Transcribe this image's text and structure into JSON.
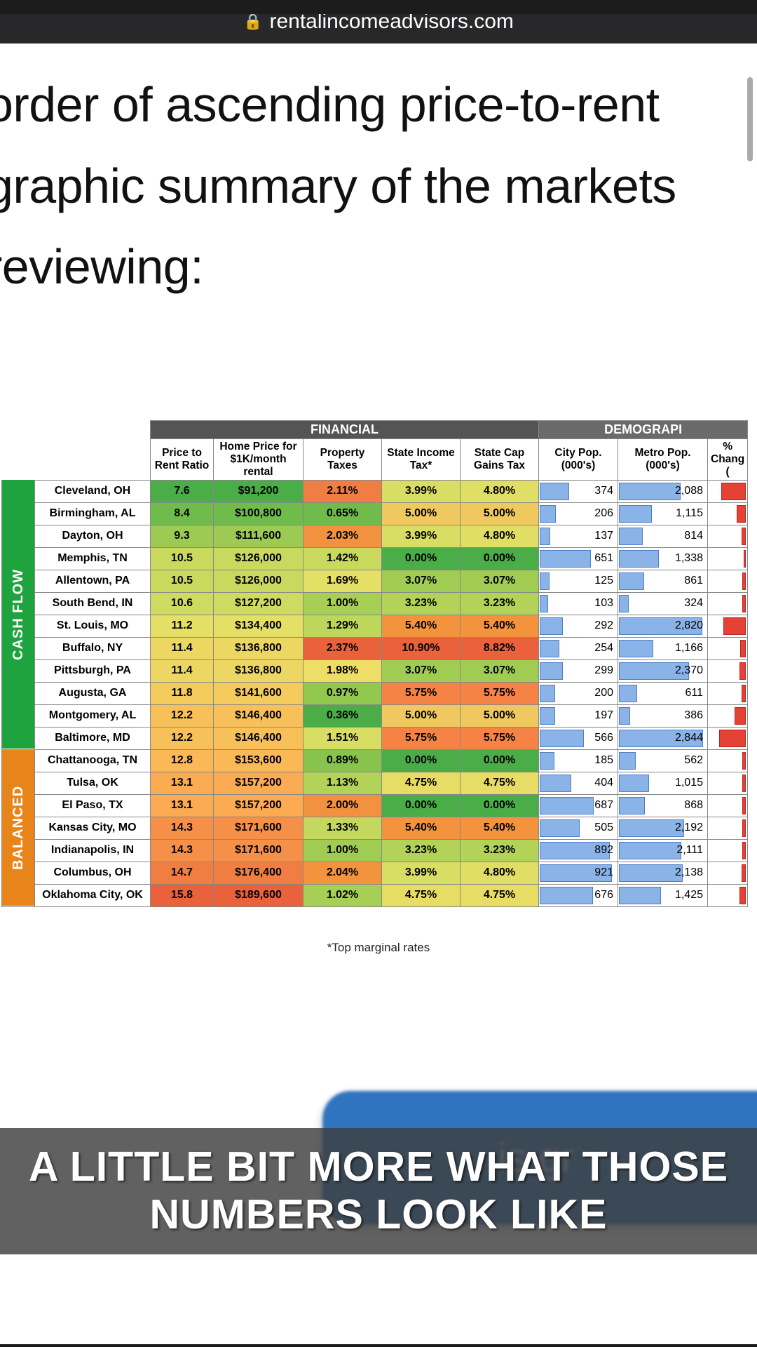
{
  "browser": {
    "url": "rentalincomeadvisors.com"
  },
  "article": {
    "line1": "order of ascending price-to-rent",
    "line2": "graphic summary of the markets",
    "line3": "reviewing:"
  },
  "table": {
    "super_headers": {
      "financial": "FINANCIAL",
      "demographic": "DEMOGRAPI"
    },
    "columns": {
      "ratio": "Price to Rent Ratio",
      "price": "Home Price for $1K/month rental",
      "ptax": "Property Taxes",
      "stax": "State Income Tax*",
      "cgtax": "State Cap Gains Tax",
      "citypop": "City Pop. (000's)",
      "metropop": "Metro Pop. (000's)",
      "chg": "% Chang ("
    },
    "categories": [
      {
        "label": "CASH FLOW",
        "css": "cat-cf",
        "rows": 12
      },
      {
        "label": "BALANCED",
        "css": "cat-bal",
        "rows": 7
      }
    ],
    "heat_colors": {
      "ratio": [
        "#4aad47",
        "#6fbb4b",
        "#9cca53",
        "#c9d95e",
        "#c9d95e",
        "#cfdb60",
        "#e4e066",
        "#edd763",
        "#edd763",
        "#f4cc5d",
        "#f8c059",
        "#f8c059",
        "#fab857",
        "#fbab52",
        "#fbab52",
        "#f68f47",
        "#f68f47",
        "#f07e42",
        "#e9623b"
      ],
      "price": [
        "#4aad47",
        "#6fbb4b",
        "#9cca53",
        "#c9d95e",
        "#c9d95e",
        "#cfdb60",
        "#e4e066",
        "#edd763",
        "#edd763",
        "#f4cc5d",
        "#f8c059",
        "#f8c059",
        "#fab857",
        "#fbab52",
        "#fbab52",
        "#f68f47",
        "#f68f47",
        "#f07e42",
        "#e9623b"
      ],
      "ptax": [
        "#f07e42",
        "#6fbb4b",
        "#f2913f",
        "#c9d95e",
        "#e4e066",
        "#a7cf55",
        "#bdd75b",
        "#e9623b",
        "#efde65",
        "#93c84e",
        "#4aad47",
        "#d8dd64",
        "#87c34d",
        "#b2d358",
        "#f2913f",
        "#c4d85e",
        "#a1cc54",
        "#f4933e",
        "#a7cf55"
      ],
      "stax": [
        "#d8dd64",
        "#efc85f",
        "#d8dd64",
        "#4aad47",
        "#a1cc54",
        "#b2d358",
        "#f4933e",
        "#e9623b",
        "#a1cc54",
        "#f68346",
        "#efc85f",
        "#f68346",
        "#4aad47",
        "#e7dd65",
        "#4aad47",
        "#f4933e",
        "#b2d358",
        "#d8dd64",
        "#e7dd65"
      ],
      "cgtax": [
        "#e0de65",
        "#efc85f",
        "#e0de65",
        "#4aad47",
        "#a1cc54",
        "#b2d358",
        "#f4933e",
        "#e9623b",
        "#a1cc54",
        "#f68346",
        "#efc85f",
        "#f68346",
        "#4aad47",
        "#e7dd65",
        "#4aad47",
        "#f4933e",
        "#b2d358",
        "#e0de65",
        "#e7dd65"
      ]
    },
    "pop_max": {
      "city": 1000,
      "metro": 3000
    },
    "rows": [
      {
        "city": "Cleveland, OH",
        "ratio": "7.6",
        "price": "$91,200",
        "ptax": "2.11%",
        "stax": "3.99%",
        "cgtax": "4.80%",
        "cp": 374,
        "mp": 2088,
        "chg": 22
      },
      {
        "city": "Birmingham, AL",
        "ratio": "8.4",
        "price": "$100,800",
        "ptax": "0.65%",
        "stax": "5.00%",
        "cgtax": "5.00%",
        "cp": 206,
        "mp": 1115,
        "chg": 8
      },
      {
        "city": "Dayton, OH",
        "ratio": "9.3",
        "price": "$111,600",
        "ptax": "2.03%",
        "stax": "3.99%",
        "cgtax": "4.80%",
        "cp": 137,
        "mp": 814,
        "chg": 4
      },
      {
        "city": "Memphis, TN",
        "ratio": "10.5",
        "price": "$126,000",
        "ptax": "1.42%",
        "stax": "0.00%",
        "cgtax": "0.00%",
        "cp": 651,
        "mp": 1338,
        "chg": 2
      },
      {
        "city": "Allentown, PA",
        "ratio": "10.5",
        "price": "$126,000",
        "ptax": "1.69%",
        "stax": "3.07%",
        "cgtax": "3.07%",
        "cp": 125,
        "mp": 861,
        "chg": 3
      },
      {
        "city": "South Bend, IN",
        "ratio": "10.6",
        "price": "$127,200",
        "ptax": "1.00%",
        "stax": "3.23%",
        "cgtax": "3.23%",
        "cp": 103,
        "mp": 324,
        "chg": 3
      },
      {
        "city": "St. Louis, MO",
        "ratio": "11.2",
        "price": "$134,400",
        "ptax": "1.29%",
        "stax": "5.40%",
        "cgtax": "5.40%",
        "cp": 292,
        "mp": 2820,
        "chg": 20
      },
      {
        "city": "Buffalo, NY",
        "ratio": "11.4",
        "price": "$136,800",
        "ptax": "2.37%",
        "stax": "10.90%",
        "cgtax": "8.82%",
        "cp": 254,
        "mp": 1166,
        "chg": 5
      },
      {
        "city": "Pittsburgh, PA",
        "ratio": "11.4",
        "price": "$136,800",
        "ptax": "1.98%",
        "stax": "3.07%",
        "cgtax": "3.07%",
        "cp": 299,
        "mp": 2370,
        "chg": 6
      },
      {
        "city": "Augusta, GA",
        "ratio": "11.8",
        "price": "$141,600",
        "ptax": "0.97%",
        "stax": "5.75%",
        "cgtax": "5.75%",
        "cp": 200,
        "mp": 611,
        "chg": 4
      },
      {
        "city": "Montgomery, AL",
        "ratio": "12.2",
        "price": "$146,400",
        "ptax": "0.36%",
        "stax": "5.00%",
        "cgtax": "5.00%",
        "cp": 197,
        "mp": 386,
        "chg": 10
      },
      {
        "city": "Baltimore, MD",
        "ratio": "12.2",
        "price": "$146,400",
        "ptax": "1.51%",
        "stax": "5.75%",
        "cgtax": "5.75%",
        "cp": 566,
        "mp": 2844,
        "chg": 24
      },
      {
        "city": "Chattanooga, TN",
        "ratio": "12.8",
        "price": "$153,600",
        "ptax": "0.89%",
        "stax": "0.00%",
        "cgtax": "0.00%",
        "cp": 185,
        "mp": 562,
        "chg": 3
      },
      {
        "city": "Tulsa, OK",
        "ratio": "13.1",
        "price": "$157,200",
        "ptax": "1.13%",
        "stax": "4.75%",
        "cgtax": "4.75%",
        "cp": 404,
        "mp": 1015,
        "chg": 3
      },
      {
        "city": "El Paso, TX",
        "ratio": "13.1",
        "price": "$157,200",
        "ptax": "2.00%",
        "stax": "0.00%",
        "cgtax": "0.00%",
        "cp": 687,
        "mp": 868,
        "chg": 3
      },
      {
        "city": "Kansas City, MO",
        "ratio": "14.3",
        "price": "$171,600",
        "ptax": "1.33%",
        "stax": "5.40%",
        "cgtax": "5.40%",
        "cp": 505,
        "mp": 2192,
        "chg": 3
      },
      {
        "city": "Indianapolis, IN",
        "ratio": "14.3",
        "price": "$171,600",
        "ptax": "1.00%",
        "stax": "3.23%",
        "cgtax": "3.23%",
        "cp": 892,
        "mp": 2111,
        "chg": 3
      },
      {
        "city": "Columbus, OH",
        "ratio": "14.7",
        "price": "$176,400",
        "ptax": "2.04%",
        "stax": "3.99%",
        "cgtax": "4.80%",
        "cp": 921,
        "mp": 2138,
        "chg": 4
      },
      {
        "city": "Oklahoma City, OK",
        "ratio": "15.8",
        "price": "$189,600",
        "ptax": "1.02%",
        "stax": "4.75%",
        "cgtax": "4.75%",
        "cp": 676,
        "mp": 1425,
        "chg": 6
      }
    ],
    "footnote": "*Top marginal rates"
  },
  "blue_card": {
    "partial_text": "is gr"
  },
  "caption": {
    "line1": "A LITTLE BIT MORE WHAT THOSE",
    "line2": "NUMBERS LOOK LIKE"
  }
}
